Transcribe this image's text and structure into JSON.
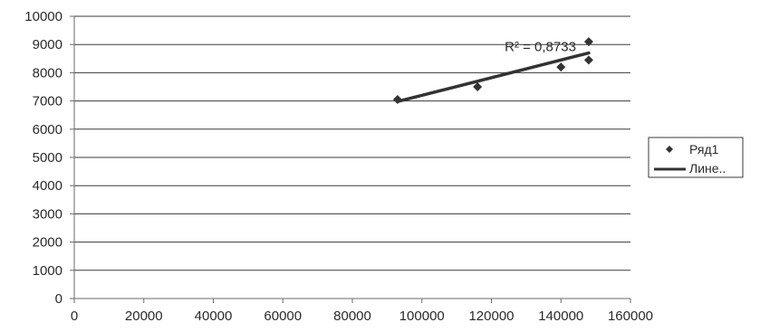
{
  "chart_data": {
    "type": "scatter",
    "title": "",
    "xlabel": "",
    "ylabel": "",
    "xlim": [
      0,
      160000
    ],
    "ylim": [
      0,
      10000
    ],
    "x_ticks": [
      0,
      20000,
      40000,
      60000,
      80000,
      100000,
      120000,
      140000,
      160000
    ],
    "y_ticks": [
      0,
      1000,
      2000,
      3000,
      4000,
      5000,
      6000,
      7000,
      8000,
      9000,
      10000
    ],
    "x_tick_labels": [
      "0",
      "20000",
      "40000",
      "60000",
      "80000",
      "100000",
      "120000",
      "140000",
      "160000"
    ],
    "y_tick_labels": [
      "0",
      "1000",
      "2000",
      "3000",
      "4000",
      "5000",
      "6000",
      "7000",
      "8000",
      "9000",
      "10000"
    ],
    "grid": "horizontal",
    "legend_position": "right",
    "series": [
      {
        "name": "Ряд1",
        "marker": "diamond",
        "color": "#333333",
        "x": [
          93000,
          116000,
          140000,
          148000,
          148000
        ],
        "y": [
          7050,
          7500,
          8200,
          9100,
          8450
        ]
      }
    ],
    "trendline": {
      "name": "Лине..",
      "type": "linear",
      "color": "#333333",
      "x_range": [
        93000,
        148000
      ],
      "y_start": 6980,
      "y_end": 8700,
      "r_squared_label": "R² = 0,8733"
    }
  }
}
